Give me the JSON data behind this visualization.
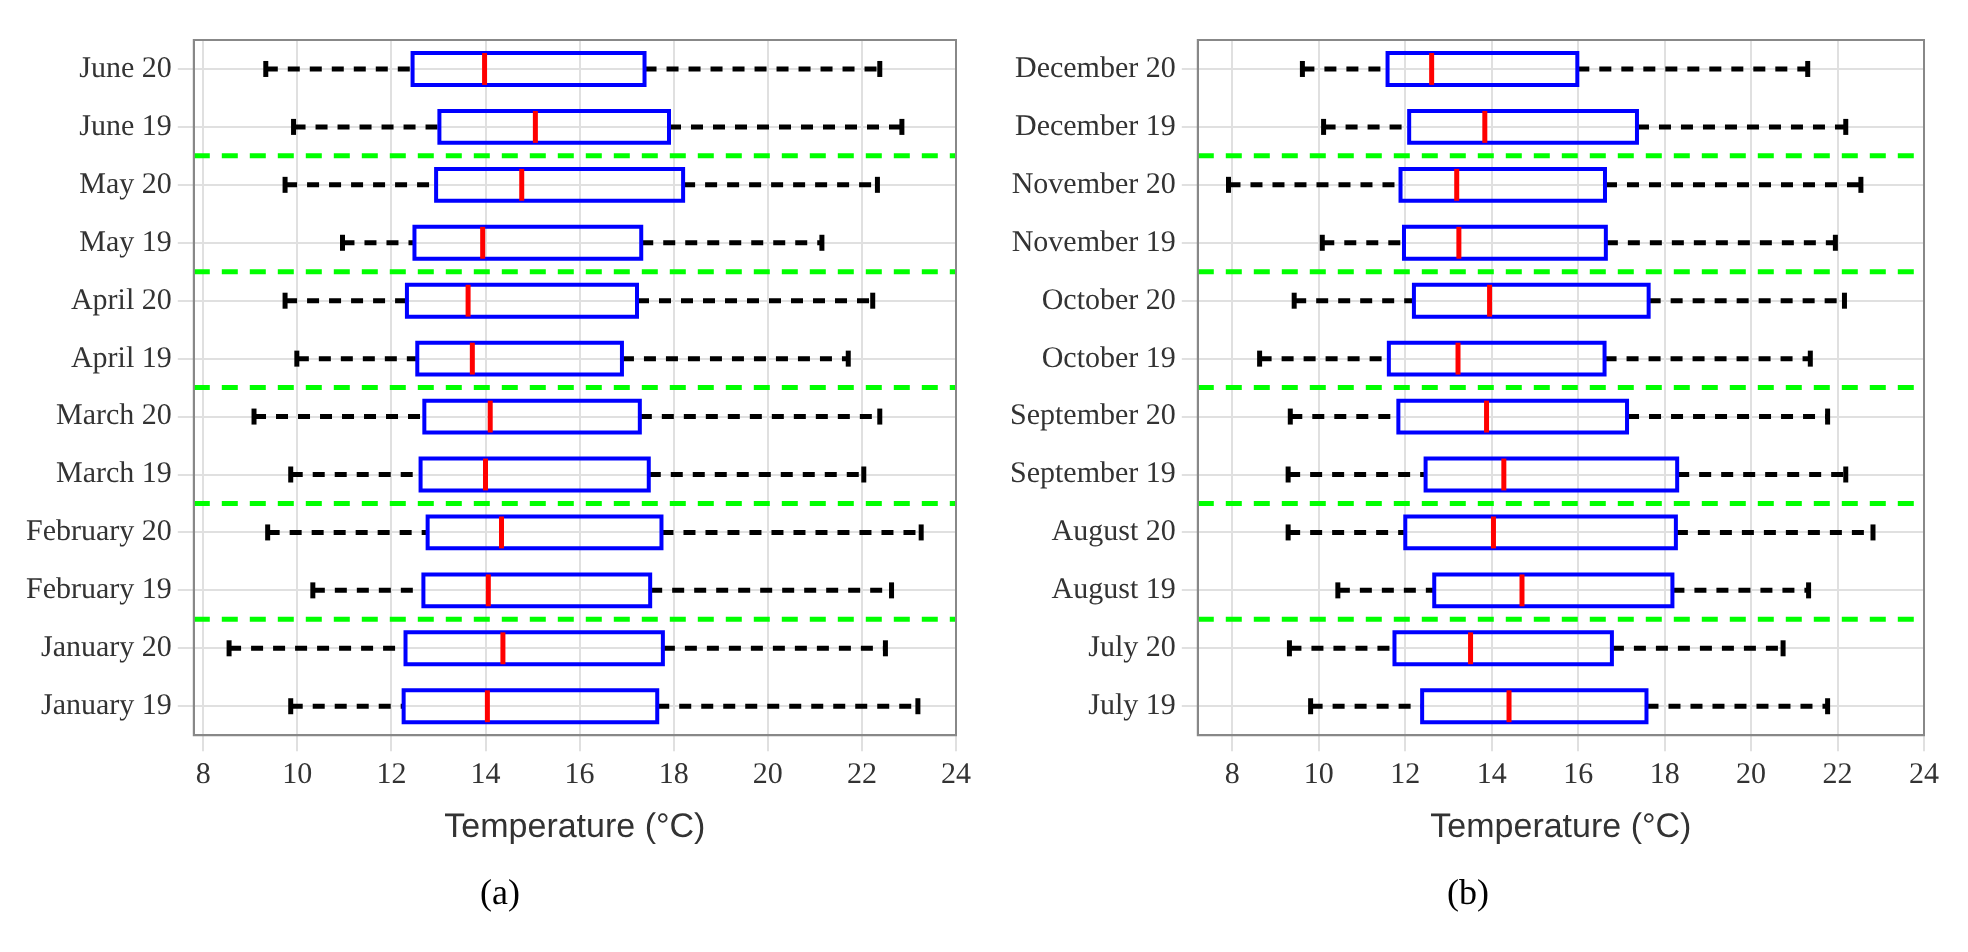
{
  "chart_data": [
    {
      "type": "box",
      "orientation": "horizontal",
      "xlabel": "Temperature (°C)",
      "annotations": [
        "(a)"
      ],
      "grid": true,
      "legend": false,
      "xlim": [
        7.8,
        24
      ],
      "xticks": [
        8,
        10,
        12,
        14,
        16,
        18,
        20,
        22,
        24
      ],
      "categories": [
        "June 20",
        "June 19",
        "May 20",
        "May 19",
        "April 20",
        "April 19",
        "March 20",
        "March 19",
        "February 20",
        "February 19",
        "January 20",
        "January 19"
      ],
      "series": [
        {
          "color": "#0000ff",
          "boxes": [
            {
              "low": 9.33,
              "q1": 12.45,
              "median": 13.98,
              "q3": 17.38,
              "high": 22.38
            },
            {
              "low": 9.92,
              "q1": 13.02,
              "median": 15.06,
              "q3": 17.9,
              "high": 22.85
            },
            {
              "low": 9.74,
              "q1": 12.95,
              "median": 14.77,
              "q3": 18.2,
              "high": 22.33
            },
            {
              "low": 10.96,
              "q1": 12.49,
              "median": 13.94,
              "q3": 17.31,
              "high": 21.15
            },
            {
              "low": 9.74,
              "q1": 12.33,
              "median": 13.63,
              "q3": 17.22,
              "high": 22.23
            },
            {
              "low": 9.99,
              "q1": 12.55,
              "median": 13.72,
              "q3": 16.9,
              "high": 21.71
            },
            {
              "low": 9.08,
              "q1": 12.7,
              "median": 14.1,
              "q3": 17.28,
              "high": 22.38
            },
            {
              "low": 9.86,
              "q1": 12.62,
              "median": 14.0,
              "q3": 17.47,
              "high": 22.04
            },
            {
              "low": 9.37,
              "q1": 12.77,
              "median": 14.34,
              "q3": 17.74,
              "high": 23.26
            },
            {
              "low": 10.33,
              "q1": 12.68,
              "median": 14.06,
              "q3": 17.5,
              "high": 22.63
            },
            {
              "low": 8.55,
              "q1": 12.3,
              "median": 14.37,
              "q3": 17.77,
              "high": 22.5
            },
            {
              "low": 9.86,
              "q1": 12.26,
              "median": 14.04,
              "q3": 17.65,
              "high": 23.19
            }
          ]
        }
      ]
    },
    {
      "type": "box",
      "orientation": "horizontal",
      "xlabel": "Temperature (°C)",
      "annotations": [
        "(b)"
      ],
      "grid": true,
      "legend": false,
      "xlim": [
        7.2,
        24
      ],
      "xticks": [
        8,
        10,
        12,
        14,
        16,
        18,
        20,
        22,
        24
      ],
      "categories": [
        "December 20",
        "December 19",
        "November 20",
        "November 19",
        "October 20",
        "October 19",
        "September 20",
        "September 19",
        "August 20",
        "August 19",
        "July 20",
        "July 19"
      ],
      "series": [
        {
          "color": "#0000ff",
          "boxes": [
            {
              "low": 9.62,
              "q1": 11.59,
              "median": 12.61,
              "q3": 15.98,
              "high": 21.31
            },
            {
              "low": 10.11,
              "q1": 12.09,
              "median": 13.84,
              "q3": 17.36,
              "high": 22.19
            },
            {
              "low": 7.91,
              "q1": 11.89,
              "median": 13.19,
              "q3": 16.62,
              "high": 22.54
            },
            {
              "low": 10.08,
              "q1": 11.97,
              "median": 13.24,
              "q3": 16.64,
              "high": 21.95
            },
            {
              "low": 9.43,
              "q1": 12.2,
              "median": 13.95,
              "q3": 17.63,
              "high": 22.16
            },
            {
              "low": 8.63,
              "q1": 11.62,
              "median": 13.22,
              "q3": 16.61,
              "high": 21.37
            },
            {
              "low": 9.34,
              "q1": 11.84,
              "median": 13.88,
              "q3": 17.13,
              "high": 21.77
            },
            {
              "low": 9.29,
              "q1": 12.47,
              "median": 14.28,
              "q3": 18.29,
              "high": 22.19
            },
            {
              "low": 9.29,
              "q1": 12.0,
              "median": 14.04,
              "q3": 18.26,
              "high": 22.82
            },
            {
              "low": 10.44,
              "q1": 12.67,
              "median": 14.7,
              "q3": 18.18,
              "high": 21.33
            },
            {
              "low": 9.32,
              "q1": 11.75,
              "median": 13.51,
              "q3": 16.78,
              "high": 20.74
            },
            {
              "low": 9.81,
              "q1": 12.39,
              "median": 14.4,
              "q3": 17.58,
              "high": 21.77
            }
          ]
        }
      ]
    }
  ]
}
